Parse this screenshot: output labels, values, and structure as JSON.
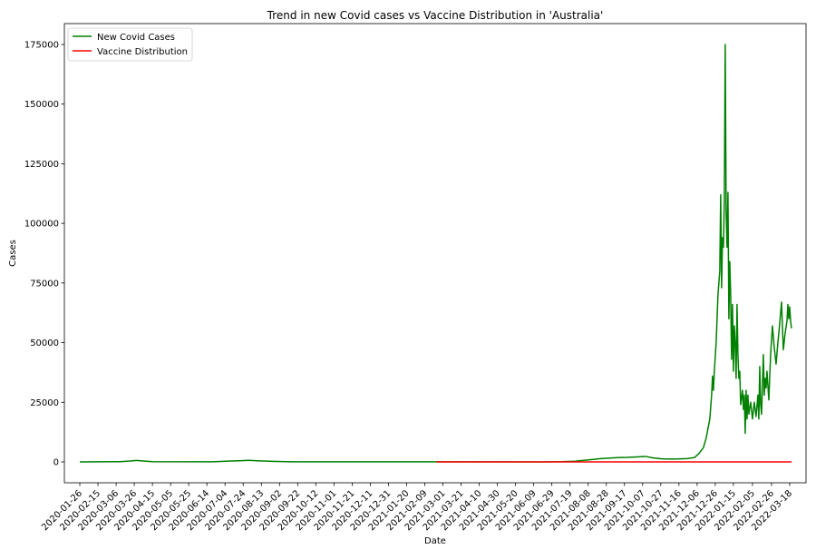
{
  "chart_data": {
    "type": "line",
    "title": "Trend in new Covid cases vs Vaccine Distribution in 'Australia'",
    "xlabel": "Date",
    "ylabel": "Cases",
    "ylim": [
      -8750,
      183750
    ],
    "x_range": [
      "2020-01-09",
      "2022-04-05"
    ],
    "y_ticks": [
      0,
      25000,
      50000,
      75000,
      100000,
      125000,
      150000,
      175000
    ],
    "x_ticks": [
      "2020-01-26",
      "2020-02-15",
      "2020-03-06",
      "2020-03-26",
      "2020-04-15",
      "2020-05-05",
      "2020-05-25",
      "2020-06-14",
      "2020-07-04",
      "2020-07-24",
      "2020-08-13",
      "2020-09-02",
      "2020-09-22",
      "2020-10-12",
      "2020-11-01",
      "2020-11-21",
      "2020-12-11",
      "2020-12-31",
      "2021-01-20",
      "2021-02-09",
      "2021-03-01",
      "2021-03-21",
      "2021-04-10",
      "2021-04-30",
      "2021-05-20",
      "2021-06-09",
      "2021-06-29",
      "2021-07-19",
      "2021-08-08",
      "2021-08-28",
      "2021-09-17",
      "2021-10-07",
      "2021-10-27",
      "2021-11-16",
      "2021-12-06",
      "2021-12-26",
      "2022-01-15",
      "2022-02-05",
      "2022-02-26",
      "2022-03-18"
    ],
    "grid": false,
    "legend": "top-left",
    "series": [
      {
        "name": "New Covid Cases",
        "color": "#008000",
        "points": [
          [
            "2020-01-26",
            0
          ],
          [
            "2020-03-10",
            100
          ],
          [
            "2020-03-22",
            400
          ],
          [
            "2020-03-28",
            600
          ],
          [
            "2020-04-05",
            400
          ],
          [
            "2020-04-15",
            100
          ],
          [
            "2020-06-20",
            50
          ],
          [
            "2020-07-05",
            300
          ],
          [
            "2020-07-20",
            500
          ],
          [
            "2020-07-30",
            650
          ],
          [
            "2020-08-08",
            500
          ],
          [
            "2020-08-25",
            250
          ],
          [
            "2020-09-15",
            50
          ],
          [
            "2021-06-20",
            20
          ],
          [
            "2021-07-10",
            100
          ],
          [
            "2021-07-25",
            300
          ],
          [
            "2021-08-10",
            900
          ],
          [
            "2021-08-22",
            1400
          ],
          [
            "2021-09-01",
            1600
          ],
          [
            "2021-09-10",
            1800
          ],
          [
            "2021-09-20",
            1900
          ],
          [
            "2021-10-01",
            2100
          ],
          [
            "2021-10-10",
            2300
          ],
          [
            "2021-10-18",
            1700
          ],
          [
            "2021-10-28",
            1300
          ],
          [
            "2021-11-10",
            1200
          ],
          [
            "2021-11-25",
            1400
          ],
          [
            "2021-12-03",
            1800
          ],
          [
            "2021-12-08",
            3500
          ],
          [
            "2021-12-13",
            6000
          ],
          [
            "2021-12-16",
            10000
          ],
          [
            "2021-12-20",
            18000
          ],
          [
            "2021-12-22",
            28000
          ],
          [
            "2021-12-23",
            36000
          ],
          [
            "2021-12-24",
            30000
          ],
          [
            "2021-12-25",
            38000
          ],
          [
            "2021-12-27",
            50000
          ],
          [
            "2021-12-29",
            70000
          ],
          [
            "2021-12-31",
            80000
          ],
          [
            "2022-01-01",
            112000
          ],
          [
            "2022-01-02",
            73000
          ],
          [
            "2022-01-03",
            94000
          ],
          [
            "2022-01-04",
            90000
          ],
          [
            "2022-01-05",
            110000
          ],
          [
            "2022-01-06",
            175000
          ],
          [
            "2022-01-07",
            105000
          ],
          [
            "2022-01-08",
            90000
          ],
          [
            "2022-01-09",
            113000
          ],
          [
            "2022-01-10",
            60000
          ],
          [
            "2022-01-11",
            84000
          ],
          [
            "2022-01-12",
            70000
          ],
          [
            "2022-01-13",
            43000
          ],
          [
            "2022-01-14",
            66000
          ],
          [
            "2022-01-15",
            38000
          ],
          [
            "2022-01-16",
            57000
          ],
          [
            "2022-01-17",
            50000
          ],
          [
            "2022-01-18",
            35000
          ],
          [
            "2022-01-19",
            66000
          ],
          [
            "2022-01-20",
            45000
          ],
          [
            "2022-01-21",
            35000
          ],
          [
            "2022-01-22",
            38000
          ],
          [
            "2022-01-23",
            24000
          ],
          [
            "2022-01-24",
            27000
          ],
          [
            "2022-01-25",
            30000
          ],
          [
            "2022-01-26",
            22000
          ],
          [
            "2022-01-27",
            28000
          ],
          [
            "2022-01-28",
            12000
          ],
          [
            "2022-01-29",
            30000
          ],
          [
            "2022-01-30",
            18000
          ],
          [
            "2022-01-31",
            28000
          ],
          [
            "2022-02-01",
            20000
          ],
          [
            "2022-02-03",
            25000
          ],
          [
            "2022-02-05",
            18000
          ],
          [
            "2022-02-07",
            25000
          ],
          [
            "2022-02-09",
            19000
          ],
          [
            "2022-02-11",
            28000
          ],
          [
            "2022-02-12",
            18000
          ],
          [
            "2022-02-13",
            40000
          ],
          [
            "2022-02-14",
            24000
          ],
          [
            "2022-02-15",
            20000
          ],
          [
            "2022-02-17",
            45000
          ],
          [
            "2022-02-18",
            28000
          ],
          [
            "2022-02-19",
            35000
          ],
          [
            "2022-02-20",
            31000
          ],
          [
            "2022-02-21",
            38000
          ],
          [
            "2022-02-23",
            26000
          ],
          [
            "2022-02-25",
            45000
          ],
          [
            "2022-02-27",
            57000
          ],
          [
            "2022-03-01",
            48000
          ],
          [
            "2022-03-03",
            41000
          ],
          [
            "2022-03-05",
            50000
          ],
          [
            "2022-03-07",
            58000
          ],
          [
            "2022-03-09",
            67000
          ],
          [
            "2022-03-11",
            47000
          ],
          [
            "2022-03-13",
            54000
          ],
          [
            "2022-03-15",
            59000
          ],
          [
            "2022-03-16",
            66000
          ],
          [
            "2022-03-17",
            60000
          ],
          [
            "2022-03-18",
            65000
          ],
          [
            "2022-03-19",
            59000
          ],
          [
            "2022-03-20",
            56000
          ]
        ]
      },
      {
        "name": "Vaccine Distribution",
        "color": "#ff0000",
        "points": [
          [
            "2021-02-22",
            0
          ],
          [
            "2022-03-20",
            0
          ]
        ]
      }
    ]
  }
}
